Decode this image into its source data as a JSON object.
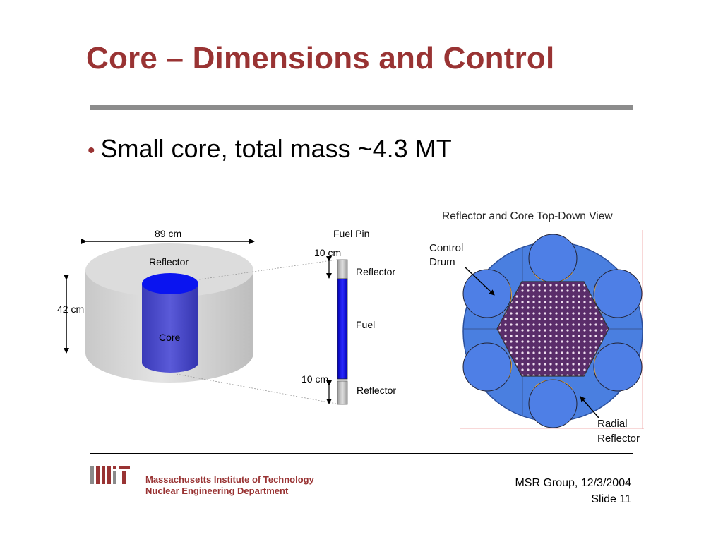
{
  "slide": {
    "title": "Core – Dimensions and Control",
    "bullet": "Small core, total mass ~4.3 MT"
  },
  "left_diagram": {
    "width_label": "89 cm",
    "height_label": "42 cm",
    "reflector_label": "Reflector",
    "core_label": "Core"
  },
  "fuel_pin": {
    "title": "Fuel Pin",
    "top_dim": "10 cm",
    "bottom_dim": "10 cm",
    "top_label": "Reflector",
    "middle_label": "Fuel",
    "bottom_label": "Reflector"
  },
  "top_view": {
    "title": "Reflector and Core Top-Down View",
    "control_drum_line1": "Control",
    "control_drum_line2": "Drum",
    "radial_line1": "Radial",
    "radial_line2": "Reflector"
  },
  "footer": {
    "institute_line1": "Massachusetts Institute of Technology",
    "institute_line2": "Nuclear Engineering Department",
    "group_date": "MSR Group, 12/3/2004",
    "slide_number": "Slide 11"
  },
  "colors": {
    "title": "#993333",
    "core_blue": "#3333cc",
    "reflector_gray": "#d9d9d9",
    "drum_orange": "#f5a623",
    "core_purple": "#6a2a6a"
  }
}
